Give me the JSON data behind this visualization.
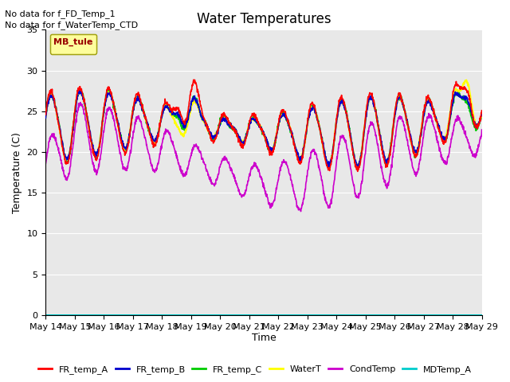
{
  "title": "Water Temperatures",
  "ylabel": "Temperature (C)",
  "xlabel": "Time",
  "text_no_data_1": "No data for f_FD_Temp_1",
  "text_no_data_2": "No data for f_WaterTemp_CTD",
  "legend_box_label": "MB_tule",
  "ylim": [
    0,
    35
  ],
  "yticks": [
    0,
    5,
    10,
    15,
    20,
    25,
    30,
    35
  ],
  "n_points": 1500,
  "bg_color": "#e8e8e8",
  "series_colors": {
    "FR_temp_A": "#ff0000",
    "FR_temp_B": "#0000cc",
    "FR_temp_C": "#00cc00",
    "WaterT": "#ffff00",
    "CondTemp": "#cc00cc",
    "MDTemp_A": "#00cccc"
  },
  "series_labels": [
    "FR_temp_A",
    "FR_temp_B",
    "FR_temp_C",
    "WaterT",
    "CondTemp",
    "MDTemp_A"
  ],
  "legend_colors": [
    "#ff0000",
    "#0000cc",
    "#00cc00",
    "#ffff00",
    "#cc00cc",
    "#00cccc"
  ],
  "xtick_labels": [
    "May 14",
    "May 15",
    "May 16",
    "May 17",
    "May 18",
    "May 19",
    "May 20",
    "May 21",
    "May 22",
    "May 23",
    "May 24",
    "May 25",
    "May 26",
    "May 27",
    "May 28",
    "May 29"
  ],
  "figsize": [
    6.4,
    4.8
  ],
  "dpi": 100
}
